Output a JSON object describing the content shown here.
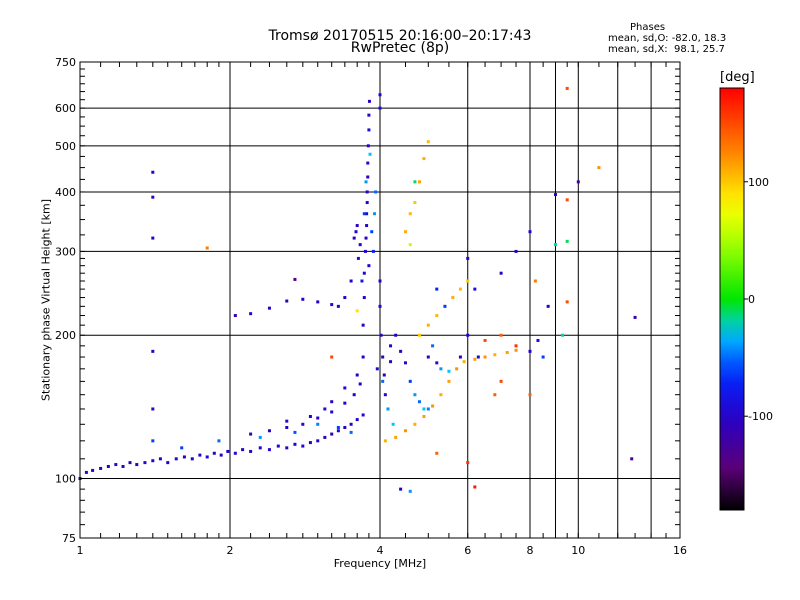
{
  "chart_data": {
    "type": "scatter",
    "title": "Tromsø 20170515 20:16:00–20:17:43",
    "subtitle": "RwPretec (8p)",
    "stats_header": "Phases",
    "stats_o": "mean, sd,O: -82.0, 18.3",
    "stats_x": "mean, sd,X:  98.1, 25.7",
    "xlabel": "Frequency [MHz]",
    "ylabel": "Stationary phase Virtual Height [km]",
    "x_scale": "log",
    "y_scale": "log",
    "xlim": [
      1,
      16
    ],
    "ylim": [
      75,
      750
    ],
    "x_ticks": [
      1,
      2,
      4,
      6,
      8,
      10,
      16
    ],
    "x_tick_labels": [
      "1",
      "2",
      "4",
      "6",
      "8",
      "10",
      "16"
    ],
    "y_ticks": [
      75,
      100,
      200,
      300,
      400,
      500,
      600,
      750
    ],
    "y_tick_labels": [
      "75",
      "100",
      "200",
      "300",
      "400",
      "500",
      "600",
      "750"
    ],
    "grid": true,
    "colorbar": {
      "unit": "[deg]",
      "range": [
        -180,
        180
      ],
      "ticks": [
        100,
        0,
        -100
      ],
      "tick_labels": [
        "100",
        "0",
        "-100"
      ]
    },
    "points": [
      [
        1.0,
        100,
        -100
      ],
      [
        1.03,
        103,
        -95
      ],
      [
        1.06,
        104,
        -100
      ],
      [
        1.1,
        105,
        -105
      ],
      [
        1.14,
        106,
        -100
      ],
      [
        1.18,
        107,
        -95
      ],
      [
        1.22,
        106,
        -100
      ],
      [
        1.26,
        108,
        -105
      ],
      [
        1.3,
        107,
        -100
      ],
      [
        1.35,
        108,
        -95
      ],
      [
        1.4,
        109,
        -100
      ],
      [
        1.45,
        110,
        -105
      ],
      [
        1.5,
        108,
        -100
      ],
      [
        1.56,
        110,
        -95
      ],
      [
        1.62,
        111,
        -100
      ],
      [
        1.68,
        110,
        -105
      ],
      [
        1.74,
        112,
        -100
      ],
      [
        1.8,
        111,
        -95
      ],
      [
        1.86,
        113,
        -100
      ],
      [
        1.92,
        112,
        -105
      ],
      [
        1.98,
        114,
        -100
      ],
      [
        2.05,
        113,
        -95
      ],
      [
        2.12,
        115,
        -100
      ],
      [
        2.2,
        114,
        -105
      ],
      [
        2.3,
        116,
        -100
      ],
      [
        2.4,
        115,
        -95
      ],
      [
        2.5,
        117,
        -100
      ],
      [
        2.6,
        116,
        -105
      ],
      [
        2.7,
        118,
        -100
      ],
      [
        2.8,
        117,
        -95
      ],
      [
        2.9,
        119,
        -100
      ],
      [
        3.0,
        120,
        -100
      ],
      [
        3.1,
        122,
        -105
      ],
      [
        3.2,
        124,
        -100
      ],
      [
        3.3,
        126,
        -95
      ],
      [
        3.4,
        128,
        -100
      ],
      [
        3.5,
        130,
        -105
      ],
      [
        3.6,
        133,
        -100
      ],
      [
        3.7,
        136,
        -95
      ],
      [
        2.2,
        124,
        -110
      ],
      [
        2.4,
        126,
        -105
      ],
      [
        2.6,
        128,
        -100
      ],
      [
        2.8,
        130,
        -95
      ],
      [
        3.0,
        134,
        -100
      ],
      [
        3.2,
        138,
        -95
      ],
      [
        3.4,
        144,
        -100
      ],
      [
        3.55,
        150,
        -105
      ],
      [
        3.65,
        158,
        -100
      ],
      [
        1.6,
        116,
        -60
      ],
      [
        1.9,
        120,
        -50
      ],
      [
        2.3,
        122,
        -40
      ],
      [
        2.7,
        125,
        -55
      ],
      [
        3.0,
        130,
        -45
      ],
      [
        3.3,
        128,
        -60
      ],
      [
        3.5,
        125,
        -50
      ],
      [
        3.7,
        180,
        -100
      ],
      [
        3.7,
        210,
        -105
      ],
      [
        3.72,
        240,
        -100
      ],
      [
        3.72,
        270,
        -95
      ],
      [
        3.74,
        300,
        -100
      ],
      [
        3.75,
        320,
        -105
      ],
      [
        3.76,
        340,
        -100
      ],
      [
        3.76,
        360,
        -95
      ],
      [
        3.77,
        380,
        -100
      ],
      [
        3.77,
        400,
        -105
      ],
      [
        3.78,
        430,
        -100
      ],
      [
        3.78,
        460,
        -95
      ],
      [
        3.79,
        500,
        -100
      ],
      [
        3.8,
        540,
        -90
      ],
      [
        3.8,
        580,
        -100
      ],
      [
        3.81,
        620,
        -105
      ],
      [
        3.55,
        320,
        -100
      ],
      [
        3.6,
        340,
        -105
      ],
      [
        3.65,
        310,
        -95
      ],
      [
        3.58,
        330,
        -100
      ],
      [
        3.85,
        330,
        -60
      ],
      [
        3.9,
        360,
        -40
      ],
      [
        3.92,
        400,
        -50
      ],
      [
        3.88,
        300,
        -70
      ],
      [
        3.8,
        280,
        -100
      ],
      [
        3.5,
        260,
        -100
      ],
      [
        3.4,
        240,
        -105
      ],
      [
        3.3,
        230,
        -100
      ],
      [
        3.2,
        232,
        -95
      ],
      [
        3.0,
        235,
        -100
      ],
      [
        2.8,
        238,
        -100
      ],
      [
        2.6,
        236,
        -105
      ],
      [
        2.4,
        228,
        -100
      ],
      [
        2.2,
        222,
        -95
      ],
      [
        2.05,
        220,
        -110
      ],
      [
        4.0,
        260,
        -100
      ],
      [
        4.0,
        230,
        -95
      ],
      [
        4.02,
        200,
        -100
      ],
      [
        4.05,
        180,
        -105
      ],
      [
        4.08,
        165,
        -100
      ],
      [
        4.1,
        150,
        -95
      ],
      [
        4.2,
        190,
        -100
      ],
      [
        4.3,
        200,
        -105
      ],
      [
        4.4,
        185,
        -100
      ],
      [
        4.5,
        175,
        -95
      ],
      [
        4.6,
        160,
        -60
      ],
      [
        4.7,
        150,
        -40
      ],
      [
        4.8,
        145,
        -50
      ],
      [
        4.9,
        140,
        -30
      ],
      [
        5.0,
        140,
        -45
      ],
      [
        4.1,
        120,
        110
      ],
      [
        4.3,
        122,
        115
      ],
      [
        4.5,
        126,
        120
      ],
      [
        4.7,
        130,
        110
      ],
      [
        4.9,
        135,
        115
      ],
      [
        5.1,
        142,
        120
      ],
      [
        5.3,
        150,
        110
      ],
      [
        5.5,
        160,
        115
      ],
      [
        5.7,
        170,
        120
      ],
      [
        5.9,
        176,
        110
      ],
      [
        6.2,
        178,
        115
      ],
      [
        6.5,
        180,
        120
      ],
      [
        6.8,
        182,
        110
      ],
      [
        7.2,
        184,
        115
      ],
      [
        7.5,
        186,
        120
      ],
      [
        4.8,
        200,
        100
      ],
      [
        5.0,
        210,
        110
      ],
      [
        5.2,
        220,
        105
      ],
      [
        5.4,
        230,
        100
      ],
      [
        5.6,
        240,
        110
      ],
      [
        5.8,
        250,
        105
      ],
      [
        6.0,
        260,
        100
      ],
      [
        4.5,
        330,
        110
      ],
      [
        4.6,
        360,
        105
      ],
      [
        4.7,
        380,
        100
      ],
      [
        4.8,
        420,
        115
      ],
      [
        4.9,
        470,
        110
      ],
      [
        5.0,
        510,
        105
      ],
      [
        4.6,
        310,
        60
      ],
      [
        4.7,
        420,
        -10
      ],
      [
        6.0,
        290,
        -100
      ],
      [
        6.2,
        250,
        -90
      ],
      [
        6.0,
        200,
        -100
      ],
      [
        5.8,
        180,
        -105
      ],
      [
        6.3,
        180,
        -95
      ],
      [
        5.2,
        250,
        -70
      ],
      [
        5.4,
        230,
        -60
      ],
      [
        5.1,
        190,
        -50
      ],
      [
        5.3,
        170,
        -40
      ],
      [
        5.5,
        168,
        -30
      ],
      [
        6.5,
        195,
        150
      ],
      [
        7.0,
        200,
        140
      ],
      [
        7.5,
        190,
        160
      ],
      [
        8.0,
        185,
        -100
      ],
      [
        8.3,
        195,
        -90
      ],
      [
        7.0,
        270,
        -100
      ],
      [
        7.5,
        300,
        -105
      ],
      [
        8.0,
        330,
        -100
      ],
      [
        9.0,
        310,
        -20
      ],
      [
        9.5,
        315,
        -10
      ],
      [
        1.4,
        440,
        -100
      ],
      [
        1.4,
        390,
        -95
      ],
      [
        1.4,
        320,
        -100
      ],
      [
        1.4,
        185,
        -100
      ],
      [
        1.4,
        140,
        -95
      ],
      [
        1.4,
        120,
        -60
      ],
      [
        1.8,
        305,
        130
      ],
      [
        2.7,
        262,
        -140
      ],
      [
        3.2,
        180,
        150
      ],
      [
        3.6,
        225,
        90
      ],
      [
        4.4,
        95,
        -100
      ],
      [
        4.6,
        94,
        -40
      ],
      [
        5.2,
        113,
        140
      ],
      [
        6.0,
        108,
        160
      ],
      [
        6.2,
        96,
        170
      ],
      [
        9.0,
        395,
        -100
      ],
      [
        9.5,
        385,
        150
      ],
      [
        9.5,
        660,
        150
      ],
      [
        9.5,
        235,
        150
      ],
      [
        11.0,
        450,
        120
      ],
      [
        9.3,
        200,
        -20
      ],
      [
        8.5,
        180,
        -60
      ],
      [
        8.0,
        150,
        140
      ],
      [
        7.0,
        160,
        150
      ],
      [
        6.8,
        150,
        140
      ],
      [
        5.0,
        180,
        -100
      ],
      [
        5.2,
        175,
        -90
      ],
      [
        4.2,
        176,
        -100
      ],
      [
        3.95,
        170,
        -95
      ],
      [
        3.6,
        165,
        -100
      ],
      [
        3.4,
        155,
        -95
      ],
      [
        3.2,
        145,
        -100
      ],
      [
        3.1,
        140,
        -90
      ],
      [
        2.9,
        135,
        -100
      ],
      [
        2.6,
        132,
        -95
      ],
      [
        13.0,
        218,
        -110
      ],
      [
        12.8,
        110,
        -130
      ],
      [
        10.0,
        420,
        -120
      ],
      [
        8.7,
        230,
        -100
      ],
      [
        8.2,
        260,
        130
      ],
      [
        3.72,
        360,
        -60
      ],
      [
        3.75,
        420,
        -40
      ],
      [
        3.68,
        260,
        -80
      ],
      [
        3.62,
        290,
        -90
      ],
      [
        3.82,
        480,
        -30
      ],
      [
        4.0,
        640,
        -100
      ],
      [
        4.0,
        600,
        -90
      ],
      [
        4.05,
        160,
        -50
      ],
      [
        4.15,
        140,
        -40
      ],
      [
        4.25,
        130,
        -30
      ]
    ]
  }
}
